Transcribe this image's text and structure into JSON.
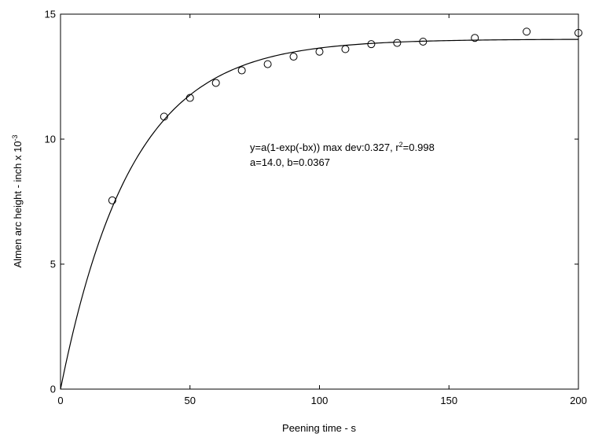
{
  "chart_data": {
    "type": "scatter",
    "title": "",
    "xlabel": "Peening time - s",
    "ylabel": {
      "text": "Almen arc height - inch x 10",
      "superscript": "-3"
    },
    "xlim": [
      0,
      200
    ],
    "ylim": [
      0,
      15
    ],
    "xticks": [
      "0",
      "50",
      "100",
      "150",
      "200"
    ],
    "yticks": [
      "0",
      "5",
      "10",
      "15"
    ],
    "grid": false,
    "legend": false,
    "series": [
      {
        "type": "scatter",
        "marker": "open-circle",
        "color": "#000000",
        "points": [
          {
            "x": 20,
            "y": 7.55
          },
          {
            "x": 40,
            "y": 10.9
          },
          {
            "x": 50,
            "y": 11.65
          },
          {
            "x": 60,
            "y": 12.25
          },
          {
            "x": 70,
            "y": 12.75
          },
          {
            "x": 80,
            "y": 13.0
          },
          {
            "x": 90,
            "y": 13.3
          },
          {
            "x": 100,
            "y": 13.5
          },
          {
            "x": 110,
            "y": 13.6
          },
          {
            "x": 120,
            "y": 13.8
          },
          {
            "x": 130,
            "y": 13.85
          },
          {
            "x": 140,
            "y": 13.9
          },
          {
            "x": 160,
            "y": 14.05
          },
          {
            "x": 180,
            "y": 14.3
          },
          {
            "x": 200,
            "y": 14.25
          }
        ]
      },
      {
        "type": "fit-line",
        "equation": "y=a(1-exp(-bx))",
        "a": 14.0,
        "b": 0.0367,
        "color": "#000000"
      }
    ],
    "annotations": {
      "line1_pre": "y=a(1-exp(-bx)) max dev:0.327, r",
      "line1_sup": "2",
      "line1_post": "=0.998",
      "line2": "a=14.0, b=0.0367"
    }
  }
}
